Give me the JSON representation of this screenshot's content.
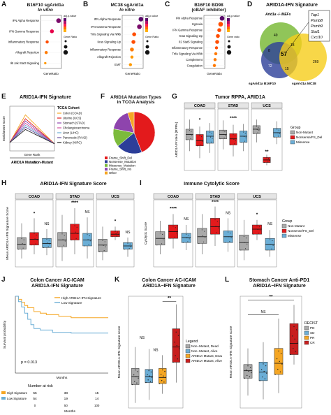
{
  "panels": {
    "a": {
      "letter": "A",
      "title": "B16F10 sgArid1a",
      "subtitle": "In vitro",
      "xlabel": "GeneRatio",
      "legend_p": "adj.p.value",
      "legend_size": "Gene Ratio"
    },
    "b": {
      "letter": "B",
      "title": "MC38 sgArid1a",
      "subtitle": "In vitro",
      "xlabel": "GeneRatio",
      "legend_p": "adj.p.value",
      "legend_size": "Gene Ratio"
    },
    "c": {
      "letter": "C",
      "title": "B16F10 BD98",
      "subtitle": "(cBAF inhibitor)",
      "xlabel": "GeneRatio",
      "legend_p": "adj.p.value",
      "legend_size": "Gene ratio"
    },
    "d": {
      "letter": "D",
      "title": "ARID1A-IFN Signature",
      "set1": "Arid1a -/- MEFs",
      "set2": "sgArid1a B16F10",
      "set3": "sgArid1a MC38",
      "n_center": "57",
      "n_mef_only": "49",
      "n_b16_only": "72",
      "n_mc38_only": "269",
      "n_mef_b16": "8",
      "n_mef_mc38": "18",
      "n_b16_mc38": "15",
      "genes": [
        "Tap1",
        "Psmb8",
        "Psmb9",
        "Stat1",
        "Cxcl10"
      ]
    },
    "e": {
      "letter": "E",
      "title": "ARID1A-IFN Signature",
      "ylabel": "Enrichment Score",
      "xlabel": "Gene Rank",
      "left_label": "ARID1A Mutant",
      "right_label": "Non-Mutant",
      "legend_title": "TCGA Cohort"
    },
    "f": {
      "letter": "F",
      "title": "ARID1A Mutation Types",
      "subtitle": "in TCGA Analysis"
    },
    "g": {
      "letter": "G",
      "title": "Tumor RPPA, ARID1A",
      "ylabel": "ARID1A Protein (RPPA)",
      "legend_title": "Group",
      "legend": [
        "Non-Mutant",
        "Nonsense/FS_Del",
        "Missense"
      ],
      "facets": [
        "COAD",
        "STAD",
        "UCS"
      ],
      "sig": [
        "*",
        "****",
        "**"
      ]
    },
    "h": {
      "letter": "H",
      "title": "ARID1A-IFN Signature Score",
      "ylabel": "Mean ARID1A-IFN Signature Score",
      "facets": [
        "COAD",
        "STAD",
        "UCS"
      ],
      "sig": [
        "*",
        "****",
        "*"
      ],
      "ns": [
        "NS",
        "NS",
        "NS"
      ]
    },
    "i": {
      "letter": "I",
      "title": "Immune Cytolytic Score",
      "ylabel": "Cytolytic Score",
      "facets": [
        "COAD",
        "STAD",
        "UCS"
      ],
      "sig": [
        "****",
        "****",
        "*"
      ],
      "ns": [
        "NS",
        "NS",
        "NS"
      ],
      "legend_title": "Group",
      "legend": [
        "Non-Mutant",
        "Nonsense/FS_Del",
        "Missense"
      ]
    },
    "j": {
      "letter": "J",
      "title": "Colon Cancer AC-ICAM",
      "subtitle": "ARID1A-IFN Signature",
      "ylabel": "Survival probability",
      "xlabel": "Months",
      "pvalue": "p = 0.013",
      "legend": [
        "High ARID1A-IFN Signature",
        "Low Signature"
      ],
      "risk_title": "Number at risk",
      "risk_xlabel": "Months",
      "risk_rows": [
        {
          "label": "High Signature",
          "values": [
            "55",
            "38",
            "15",
            "3"
          ]
        },
        {
          "label": "Low Signature",
          "values": [
            "54",
            "19",
            "14",
            "2"
          ]
        }
      ],
      "risk_times": [
        "0",
        "50",
        "100",
        "150"
      ]
    },
    "k": {
      "letter": "K",
      "title": "Colon Cancer AC-ICAM",
      "subtitle": "ARID1A−IFN Signature",
      "ylabel": "Mean ARID1A-IFN Signature score",
      "sig": "**",
      "ns": [
        "NS",
        "NS"
      ],
      "legend_title": "Legend",
      "legend": [
        "Non−Mutant, Dead",
        "Non−Mutant, Alive",
        "ARID1A Mutant, Dead",
        "ARID1A Mutant, Alive"
      ]
    },
    "l": {
      "letter": "L",
      "title": "Stomach Cancer Anti-PD1",
      "subtitle": "ARID1A−IFN Signature",
      "ylabel": "Mean ARID1A-IFN Signature score",
      "sig": "**",
      "ns": "NS",
      "legend_title": "RECIST",
      "legend": [
        "PD",
        "SD",
        "PR",
        "CR"
      ]
    }
  },
  "colors": {
    "grey": "#a9a9a9",
    "red": "#e31a1c",
    "blue": "#6baed6",
    "orange": "#f5a623",
    "dark_red": "#c81e1e",
    "green": "#7cbb3c",
    "navy": "#2c3e99",
    "yellow": "#f6cd1a",
    "purple": "#8e44ad"
  },
  "chart_data": [
    {
      "panel": "A",
      "type": "scatter",
      "categories": [
        "IFN Alpha Response",
        "IFN Gamma Response",
        "Inflammatory Response",
        "Allograft Rejection",
        "Il6 Jak Stat3 Signaling"
      ],
      "x": [
        0.19,
        0.12,
        0.07,
        0.06,
        0.05
      ],
      "size": [
        6,
        5,
        4,
        4,
        3
      ],
      "p_color": [
        "#7a0a6a",
        "#e60049",
        "#ff4d00",
        "#ff7a00",
        "#ff9900"
      ],
      "xlabel": "GeneRatio"
    },
    {
      "panel": "B",
      "type": "scatter",
      "categories": [
        "IFN Alpha Response",
        "IFN Gamma Response",
        "Tnfa Signaling Via Nfkb",
        "Kras Signaling Up",
        "Inflammatory Response",
        "Allograft Rejection",
        "EMT"
      ],
      "x": [
        0.25,
        0.23,
        0.16,
        0.15,
        0.13,
        0.13,
        0.11
      ],
      "size": [
        6,
        6,
        5,
        5,
        5,
        4,
        4
      ],
      "p_color": [
        "#5a0a6a",
        "#7a0a6a",
        "#ff4d00",
        "#ff4d00",
        "#ff7a00",
        "#ff9900",
        "#ff9900"
      ],
      "xlabel": "GeneRatio"
    },
    {
      "panel": "C",
      "type": "scatter",
      "categories": [
        "IFN Alpha Response",
        "Hypoxia",
        "IFN Gamma Response",
        "Kras Signaling Up",
        "Il2 Stat5 Signaling",
        "Inflammatory Response",
        "Tnfa Signaling Via Nfkb",
        "Complement",
        "Coagulation"
      ],
      "x": [
        0.13,
        0.12,
        0.11,
        0.1,
        0.095,
        0.09,
        0.085,
        0.08,
        0.075
      ],
      "size": [
        6,
        6,
        5,
        5,
        5,
        4,
        4,
        4,
        4
      ],
      "p_color": [
        "#5a0a6a",
        "#ff4d00",
        "#ff4d00",
        "#ff4d00",
        "#ff4d00",
        "#ff4d00",
        "#ff7a00",
        "#ff7a00",
        "#ff7a00"
      ],
      "xlabel": "GeneRatio"
    },
    {
      "panel": "E",
      "type": "line",
      "xlabel": "Gene Rank",
      "ylabel": "Enrichment Score",
      "series": [
        {
          "name": "Colon (COAD)",
          "color": "#f5a623",
          "peak": 0.72
        },
        {
          "name": "Uterine (UCS)",
          "color": "#e31a1c",
          "peak": 0.62
        },
        {
          "name": "Stomach (STAD)",
          "color": "#8e44ad",
          "peak": 0.56
        },
        {
          "name": "Cholangiocarcinoma",
          "color": "#d14fa0",
          "peak": 0.5
        },
        {
          "name": "Liver (LIHC)",
          "color": "#6baed6",
          "peak": 0.45
        },
        {
          "name": "Pancreatic (PAAD)",
          "color": "#6a51a3",
          "peak": 0.4
        },
        {
          "name": "Kidney (KIRC)",
          "color": "#222222",
          "peak": 0.34
        }
      ]
    },
    {
      "panel": "F",
      "type": "pie",
      "categories": [
        "Frame_Shift_Del",
        "Nonsense_Mutation",
        "Missense_Mutation",
        "Frame_Shift_Ins",
        "Other"
      ],
      "values": [
        44,
        20,
        14,
        17,
        5
      ],
      "colors": [
        "#e31a1c",
        "#2c3e99",
        "#7cbb3c",
        "#8e44ad",
        "#f5a623"
      ]
    },
    {
      "panel": "G",
      "type": "box",
      "facets": [
        "COAD",
        "STAD",
        "UCS"
      ],
      "groups": [
        "Non-Mutant",
        "Nonsense/FS_Del",
        "Missense"
      ],
      "ylabel": "ARID1A Protein (RPPA)",
      "ylim": [
        -2.0,
        1.5
      ],
      "boxes": [
        [
          [
            -0.9,
            -0.25,
            0.05,
            0.35,
            0.9
          ],
          [
            -1.3,
            -0.6,
            -0.3,
            0.05,
            0.5
          ],
          [
            -1.0,
            -0.45,
            -0.05,
            0.25,
            0.7
          ]
        ],
        [
          [
            -0.8,
            -0.2,
            0.05,
            0.3,
            0.85
          ],
          [
            -1.2,
            -0.55,
            -0.2,
            0.1,
            0.6
          ],
          [
            -0.9,
            -0.4,
            -0.05,
            0.25,
            0.65
          ]
        ],
        [
          [
            -0.4,
            0.1,
            0.35,
            0.55,
            0.9
          ],
          [
            -1.7,
            -1.55,
            -1.4,
            -1.25,
            -1.1
          ],
          [
            -0.5,
            -0.1,
            0.15,
            0.4,
            0.8
          ]
        ]
      ]
    },
    {
      "panel": "H",
      "type": "box",
      "facets": [
        "COAD",
        "STAD",
        "UCS"
      ],
      "groups": [
        "Non-Mutant",
        "Nonsense/FS_Del",
        "Missense"
      ],
      "ylabel": "Mean ARID1A-IFN Signature Score",
      "ylim": [
        -3,
        5
      ],
      "boxes": [
        [
          [
            -2.0,
            -0.9,
            -0.3,
            0.5,
            2.2
          ],
          [
            -1.5,
            -0.4,
            0.3,
            1.1,
            2.8
          ],
          [
            -1.6,
            -0.7,
            -0.2,
            0.4,
            1.5
          ]
        ],
        [
          [
            -2.3,
            -0.6,
            0.2,
            1.1,
            3.2
          ],
          [
            -1.5,
            0.2,
            1.0,
            2.1,
            4.0
          ],
          [
            -2.0,
            -0.5,
            0.2,
            1.0,
            2.9
          ]
        ],
        [
          [
            -2.2,
            -1.2,
            -0.4,
            0.3,
            1.8
          ],
          [
            0.2,
            0.6,
            0.9,
            1.3,
            1.8
          ],
          [
            -1.8,
            -0.9,
            -0.5,
            -0.1,
            0.5
          ]
        ]
      ]
    },
    {
      "panel": "I",
      "type": "box",
      "facets": [
        "COAD",
        "STAD",
        "UCS"
      ],
      "groups": [
        "Non-Mutant",
        "Nonsense/FS_Del",
        "Missense"
      ],
      "ylabel": "Cytolytic Score",
      "ylim": [
        0,
        8
      ],
      "boxes": [
        [
          [
            1.5,
            2.6,
            3.4,
            4.2,
            5.5
          ],
          [
            2.2,
            3.4,
            4.2,
            5.0,
            6.3
          ],
          [
            2.0,
            2.9,
            3.5,
            4.0,
            5.0
          ]
        ],
        [
          [
            1.5,
            2.8,
            3.6,
            4.6,
            6.3
          ],
          [
            2.5,
            3.9,
            4.8,
            5.8,
            7.2
          ],
          [
            1.8,
            2.9,
            3.6,
            4.3,
            5.8
          ]
        ],
        [
          [
            0.8,
            2.0,
            2.9,
            3.8,
            5.6
          ],
          [
            3.2,
            3.9,
            4.5,
            5.0,
            5.6
          ],
          [
            1.2,
            2.0,
            2.7,
            3.4,
            4.4
          ]
        ]
      ]
    },
    {
      "panel": "J",
      "type": "line",
      "xlabel": "Months",
      "ylabel": "Survival probability",
      "xlim": [
        0,
        150
      ],
      "ylim": [
        0,
        1
      ],
      "series": [
        {
          "name": "High ARID1A-IFN Signature",
          "x": [
            0,
            5,
            10,
            15,
            20,
            30,
            40,
            50,
            70,
            90,
            150
          ],
          "y": [
            1.0,
            0.96,
            0.92,
            0.88,
            0.85,
            0.8,
            0.78,
            0.76,
            0.74,
            0.72,
            0.72
          ]
        },
        {
          "name": "Low Signature",
          "x": [
            0,
            5,
            10,
            15,
            20,
            25,
            30,
            40,
            60,
            90,
            150
          ],
          "y": [
            1.0,
            0.93,
            0.86,
            0.78,
            0.7,
            0.63,
            0.58,
            0.56,
            0.53,
            0.52,
            0.52
          ]
        }
      ]
    },
    {
      "panel": "K",
      "type": "box",
      "categories": [
        "Non−Mutant, Dead",
        "Non−Mutant, Alive",
        "ARID1A Mutant, Dead",
        "ARID1A Mutant, Alive"
      ],
      "ylim": [
        -3,
        8
      ],
      "boxes": [
        [
          -2.5,
          -0.7,
          0.1,
          0.9,
          3.0
        ],
        [
          -2.2,
          -0.5,
          0.1,
          0.8,
          2.8
        ],
        [
          -1.6,
          -0.6,
          0.0,
          0.9,
          2.2
        ],
        [
          -0.5,
          1.5,
          3.0,
          4.8,
          7.2
        ]
      ]
    },
    {
      "panel": "L",
      "type": "box",
      "categories": [
        "PD",
        "SD",
        "PR",
        "CR"
      ],
      "ylim": [
        -3,
        6
      ],
      "boxes": [
        [
          -2.0,
          -0.6,
          0.0,
          0.5,
          1.8
        ],
        [
          -2.3,
          -0.8,
          -0.1,
          0.7,
          2.3
        ],
        [
          -1.8,
          -0.3,
          0.6,
          1.8,
          4.2
        ],
        [
          0.5,
          1.3,
          2.2,
          3.8,
          5.3
        ]
      ]
    }
  ]
}
